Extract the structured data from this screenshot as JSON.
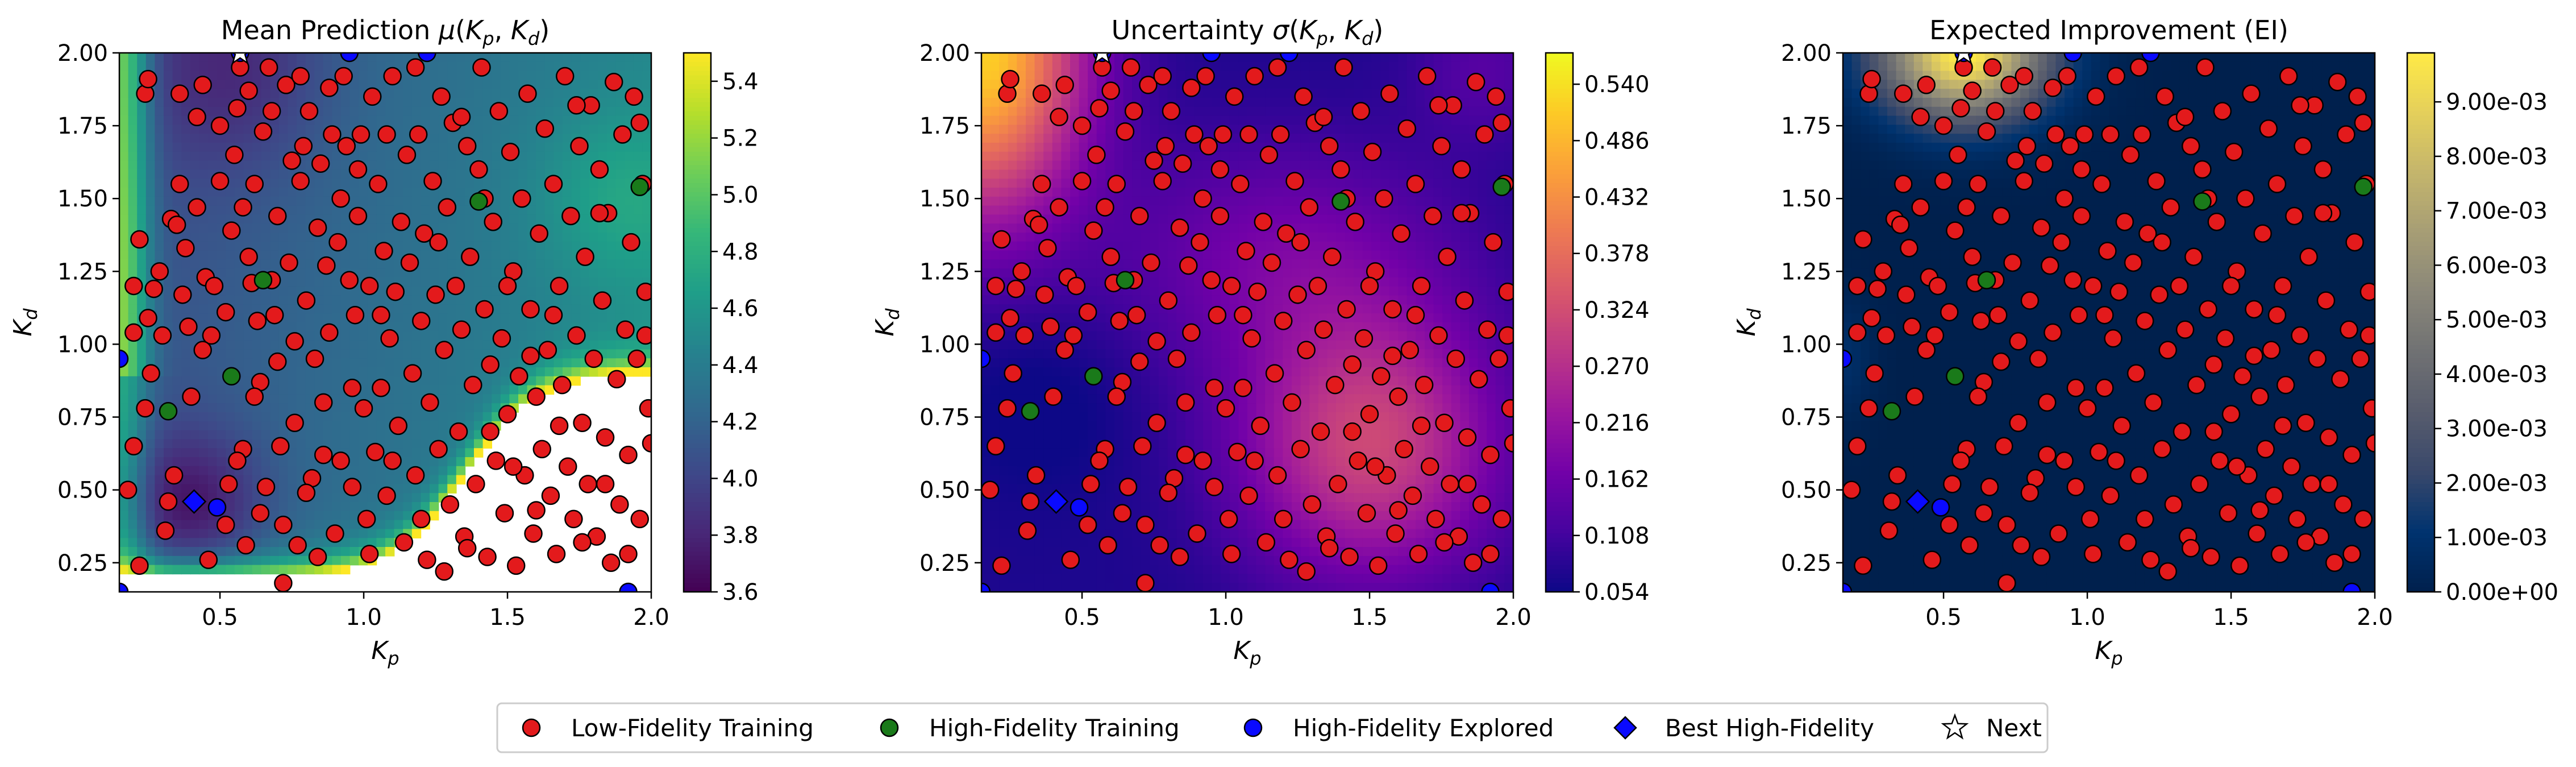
{
  "chart_data": [
    {
      "type": "heatmap",
      "title": "Mean Prediction μ(K_p, K_d)",
      "title_parts": {
        "prefix": "Mean Prediction ",
        "symbol": "μ",
        "args": "(K_p, K_d)"
      },
      "xlabel": "K_p",
      "ylabel": "K_d",
      "xlim": [
        0.15,
        2.0
      ],
      "ylim": [
        0.15,
        2.0
      ],
      "xticks": [
        "0.5",
        "1.0",
        "1.5",
        "2.0"
      ],
      "yticks": [
        "0.25",
        "0.50",
        "0.75",
        "1.00",
        "1.25",
        "1.50",
        "1.75",
        "2.00"
      ],
      "colormap": "viridis",
      "colorbar_ticks": [
        "3.6",
        "3.8",
        "4.0",
        "4.2",
        "4.4",
        "4.6",
        "4.8",
        "5.0",
        "5.2",
        "5.4"
      ],
      "colorbar_range": [
        3.6,
        5.5
      ]
    },
    {
      "type": "heatmap",
      "title": "Uncertainty σ(K_p, K_d)",
      "title_parts": {
        "prefix": "Uncertainty ",
        "symbol": "σ",
        "args": "(K_p, K_d)"
      },
      "xlabel": "K_p",
      "ylabel": "K_d",
      "xlim": [
        0.15,
        2.0
      ],
      "ylim": [
        0.15,
        2.0
      ],
      "xticks": [
        "0.5",
        "1.0",
        "1.5",
        "2.0"
      ],
      "yticks": [
        "0.25",
        "0.50",
        "0.75",
        "1.00",
        "1.25",
        "1.50",
        "1.75",
        "2.00"
      ],
      "colormap": "plasma",
      "colorbar_ticks": [
        "0.054",
        "0.108",
        "0.162",
        "0.216",
        "0.270",
        "0.324",
        "0.378",
        "0.432",
        "0.486",
        "0.540"
      ],
      "colorbar_range": [
        0.054,
        0.57
      ]
    },
    {
      "type": "heatmap",
      "title": "Expected Improvement (EI)",
      "title_parts": {
        "prefix": "Expected Improvement (EI)",
        "symbol": "",
        "args": ""
      },
      "xlabel": "K_p",
      "ylabel": "K_d",
      "xlim": [
        0.15,
        2.0
      ],
      "ylim": [
        0.15,
        2.0
      ],
      "xticks": [
        "0.5",
        "1.0",
        "1.5",
        "2.0"
      ],
      "yticks": [
        "0.25",
        "0.50",
        "0.75",
        "1.00",
        "1.25",
        "1.50",
        "1.75",
        "2.00"
      ],
      "colormap": "cividis",
      "colorbar_ticks": [
        "0.00e+00",
        "1.00e-03",
        "2.00e-03",
        "3.00e-03",
        "4.00e-03",
        "5.00e-03",
        "6.00e-03",
        "7.00e-03",
        "8.00e-03",
        "9.00e-03"
      ],
      "colorbar_range": [
        0.0,
        0.0099
      ]
    }
  ],
  "scatter": {
    "low_fidelity": [
      [
        0.18,
        0.5
      ],
      [
        0.2,
        0.65
      ],
      [
        0.22,
        0.24
      ],
      [
        0.2,
        1.2
      ],
      [
        0.22,
        1.36
      ],
      [
        0.24,
        1.86
      ],
      [
        0.25,
        1.91
      ],
      [
        0.25,
        1.09
      ],
      [
        0.27,
        1.19
      ],
      [
        0.29,
        1.25
      ],
      [
        0.31,
        0.36
      ],
      [
        0.32,
        0.46
      ],
      [
        0.33,
        1.43
      ],
      [
        0.35,
        1.41
      ],
      [
        0.36,
        1.86
      ],
      [
        0.37,
        1.17
      ],
      [
        0.38,
        1.33
      ],
      [
        0.39,
        1.06
      ],
      [
        0.4,
        0.82
      ],
      [
        0.42,
        1.47
      ],
      [
        0.44,
        1.89
      ],
      [
        0.45,
        1.23
      ],
      [
        0.47,
        1.03
      ],
      [
        0.48,
        1.2
      ],
      [
        0.5,
        1.75
      ],
      [
        0.52,
        1.11
      ],
      [
        0.53,
        0.52
      ],
      [
        0.54,
        1.39
      ],
      [
        0.55,
        1.65
      ],
      [
        0.56,
        1.81
      ],
      [
        0.57,
        1.95
      ],
      [
        0.58,
        1.47
      ],
      [
        0.59,
        0.31
      ],
      [
        0.6,
        1.3
      ],
      [
        0.61,
        1.21
      ],
      [
        0.62,
        1.55
      ],
      [
        0.63,
        1.08
      ],
      [
        0.64,
        0.87
      ],
      [
        0.65,
        1.73
      ],
      [
        0.66,
        0.51
      ],
      [
        0.67,
        1.95
      ],
      [
        0.68,
        1.22
      ],
      [
        0.69,
        1.1
      ],
      [
        0.7,
        1.44
      ],
      [
        0.71,
        0.65
      ],
      [
        0.72,
        0.18
      ],
      [
        0.73,
        1.89
      ],
      [
        0.74,
        1.28
      ],
      [
        0.75,
        1.63
      ],
      [
        0.76,
        1.01
      ],
      [
        0.77,
        0.31
      ],
      [
        0.78,
        1.56
      ],
      [
        0.79,
        1.68
      ],
      [
        0.8,
        1.15
      ],
      [
        0.81,
        1.8
      ],
      [
        0.82,
        0.54
      ],
      [
        0.83,
        0.95
      ],
      [
        0.84,
        1.4
      ],
      [
        0.85,
        1.62
      ],
      [
        0.86,
        0.8
      ],
      [
        0.87,
        1.27
      ],
      [
        0.88,
        1.04
      ],
      [
        0.89,
        1.72
      ],
      [
        0.9,
        0.35
      ],
      [
        0.91,
        1.35
      ],
      [
        0.92,
        1.5
      ],
      [
        0.93,
        1.92
      ],
      [
        0.94,
        1.68
      ],
      [
        0.95,
        1.22
      ],
      [
        0.96,
        0.85
      ],
      [
        0.97,
        1.1
      ],
      [
        0.98,
        1.44
      ],
      [
        0.99,
        1.72
      ],
      [
        1.0,
        0.78
      ],
      [
        1.01,
        0.4
      ],
      [
        1.02,
        1.2
      ],
      [
        1.03,
        1.85
      ],
      [
        1.04,
        0.63
      ],
      [
        1.05,
        1.55
      ],
      [
        1.06,
        1.1
      ],
      [
        1.07,
        1.32
      ],
      [
        1.08,
        0.48
      ],
      [
        1.09,
        1.02
      ],
      [
        1.1,
        1.92
      ],
      [
        1.11,
        1.18
      ],
      [
        1.12,
        0.72
      ],
      [
        1.13,
        1.42
      ],
      [
        1.14,
        0.32
      ],
      [
        1.15,
        1.65
      ],
      [
        1.16,
        1.28
      ],
      [
        1.17,
        0.9
      ],
      [
        1.18,
        0.55
      ],
      [
        1.19,
        1.72
      ],
      [
        1.2,
        1.08
      ],
      [
        1.21,
        1.38
      ],
      [
        1.22,
        0.26
      ],
      [
        1.23,
        0.8
      ],
      [
        1.24,
        1.56
      ],
      [
        1.25,
        1.17
      ],
      [
        1.26,
        0.64
      ],
      [
        1.27,
        1.85
      ],
      [
        1.28,
        0.98
      ],
      [
        1.29,
        1.47
      ],
      [
        1.3,
        0.45
      ],
      [
        1.31,
        1.76
      ],
      [
        1.32,
        1.2
      ],
      [
        1.33,
        0.7
      ],
      [
        1.34,
        1.05
      ],
      [
        1.35,
        0.34
      ],
      [
        1.36,
        1.68
      ],
      [
        1.37,
        1.3
      ],
      [
        1.38,
        0.86
      ],
      [
        1.39,
        0.52
      ],
      [
        1.4,
        1.6
      ],
      [
        1.41,
        1.95
      ],
      [
        1.42,
        1.12
      ],
      [
        1.43,
        0.27
      ],
      [
        1.44,
        0.93
      ],
      [
        1.45,
        1.42
      ],
      [
        1.46,
        0.6
      ],
      [
        1.47,
        1.8
      ],
      [
        1.48,
        1.02
      ],
      [
        1.49,
        0.42
      ],
      [
        1.5,
        0.76
      ],
      [
        1.51,
        1.66
      ],
      [
        1.52,
        1.25
      ],
      [
        1.53,
        0.24
      ],
      [
        1.54,
        0.89
      ],
      [
        1.55,
        1.5
      ],
      [
        1.56,
        0.55
      ],
      [
        1.57,
        1.86
      ],
      [
        1.58,
        1.12
      ],
      [
        1.59,
        0.35
      ],
      [
        1.6,
        0.82
      ],
      [
        1.61,
        1.38
      ],
      [
        1.62,
        0.64
      ],
      [
        1.63,
        1.74
      ],
      [
        1.64,
        0.98
      ],
      [
        1.65,
        0.48
      ],
      [
        1.66,
        1.55
      ],
      [
        1.67,
        0.28
      ],
      [
        1.68,
        1.2
      ],
      [
        1.69,
        0.86
      ],
      [
        1.7,
        1.92
      ],
      [
        1.71,
        0.58
      ],
      [
        1.72,
        1.44
      ],
      [
        1.73,
        0.4
      ],
      [
        1.74,
        1.03
      ],
      [
        1.75,
        1.68
      ],
      [
        1.76,
        0.73
      ],
      [
        1.77,
        1.3
      ],
      [
        1.78,
        0.52
      ],
      [
        1.79,
        1.82
      ],
      [
        1.8,
        0.95
      ],
      [
        1.81,
        0.34
      ],
      [
        1.82,
        1.6
      ],
      [
        1.83,
        1.15
      ],
      [
        1.84,
        0.68
      ],
      [
        1.85,
        1.45
      ],
      [
        1.86,
        0.25
      ],
      [
        1.87,
        1.9
      ],
      [
        1.88,
        0.88
      ],
      [
        1.89,
        0.45
      ],
      [
        1.9,
        1.72
      ],
      [
        1.91,
        1.05
      ],
      [
        1.92,
        0.62
      ],
      [
        1.93,
        1.35
      ],
      [
        1.94,
        1.85
      ],
      [
        1.95,
        0.95
      ],
      [
        1.96,
        0.4
      ],
      [
        1.97,
        1.55
      ],
      [
        1.98,
        1.18
      ],
      [
        1.99,
        0.78
      ],
      [
        1.96,
        1.76
      ],
      [
        0.26,
        0.9
      ],
      [
        0.34,
        0.55
      ],
      [
        0.46,
        0.26
      ],
      [
        0.52,
        0.38
      ],
      [
        0.58,
        0.64
      ],
      [
        0.64,
        0.42
      ],
      [
        0.7,
        0.94
      ],
      [
        0.76,
        0.73
      ],
      [
        0.84,
        0.27
      ],
      [
        0.92,
        0.6
      ],
      [
        1.02,
        0.28
      ],
      [
        1.1,
        0.6
      ],
      [
        1.2,
        0.4
      ],
      [
        1.28,
        0.22
      ],
      [
        1.36,
        0.3
      ],
      [
        1.44,
        0.7
      ],
      [
        1.52,
        0.58
      ],
      [
        1.6,
        0.43
      ],
      [
        1.68,
        0.72
      ],
      [
        1.76,
        0.32
      ],
      [
        1.84,
        0.52
      ],
      [
        1.92,
        0.28
      ],
      [
        2.0,
        0.66
      ],
      [
        1.98,
        1.03
      ],
      [
        1.82,
        1.45
      ],
      [
        1.74,
        1.82
      ],
      [
        1.66,
        1.1
      ],
      [
        1.58,
        0.96
      ],
      [
        1.5,
        1.2
      ],
      [
        1.42,
        1.5
      ],
      [
        1.34,
        1.78
      ],
      [
        1.26,
        1.35
      ],
      [
        1.18,
        1.95
      ],
      [
        1.08,
        1.72
      ],
      [
        0.98,
        1.6
      ],
      [
        0.88,
        1.88
      ],
      [
        0.78,
        1.92
      ],
      [
        0.68,
        1.8
      ],
      [
        0.6,
        1.87
      ],
      [
        0.5,
        1.56
      ],
      [
        0.42,
        1.78
      ],
      [
        0.36,
        1.55
      ],
      [
        0.3,
        1.03
      ],
      [
        0.24,
        0.78
      ],
      [
        0.2,
        1.04
      ],
      [
        0.44,
        0.98
      ],
      [
        0.56,
        0.6
      ],
      [
        0.62,
        0.82
      ],
      [
        0.72,
        0.38
      ],
      [
        0.8,
        0.49
      ],
      [
        0.86,
        0.62
      ],
      [
        0.96,
        0.51
      ],
      [
        1.06,
        0.85
      ]
    ],
    "high_fidelity_training": [
      [
        0.32,
        0.77
      ],
      [
        0.54,
        0.89
      ],
      [
        0.65,
        1.22
      ],
      [
        1.4,
        1.49
      ],
      [
        1.96,
        1.54
      ]
    ],
    "high_fidelity_explored": [
      [
        0.15,
        0.95
      ],
      [
        0.49,
        0.44
      ],
      [
        0.57,
        2.0
      ],
      [
        0.95,
        2.0
      ],
      [
        1.22,
        2.0
      ],
      [
        1.92,
        0.15
      ],
      [
        0.15,
        0.15
      ]
    ],
    "best_high_fidelity": [
      [
        0.41,
        0.46
      ]
    ],
    "next": [
      [
        0.57,
        2.0
      ]
    ]
  },
  "legend": {
    "entries": [
      {
        "label": "Low-Fidelity Training",
        "marker": "circle",
        "color": "#e31a1c"
      },
      {
        "label": "High-Fidelity Training",
        "marker": "circle",
        "color": "#1a7a1a"
      },
      {
        "label": "High-Fidelity Explored",
        "marker": "circle",
        "color": "#0a0aff"
      },
      {
        "label": "Best High-Fidelity",
        "marker": "diamond",
        "color": "#0a0aff"
      },
      {
        "label": "Next",
        "marker": "star",
        "color": "#ffffff"
      }
    ]
  }
}
